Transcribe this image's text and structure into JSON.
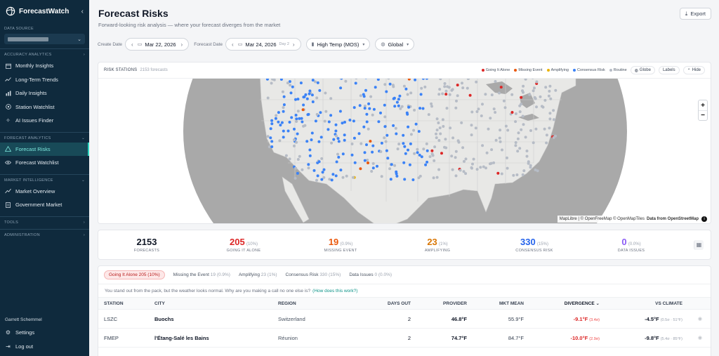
{
  "app": {
    "name": "ForecastWatch"
  },
  "sidebar": {
    "data_source_label": "DATA SOURCE",
    "sections": [
      {
        "label": "ACCURACY ANALYTICS",
        "items": [
          "Monthly Insights",
          "Long-Term Trends",
          "Daily Insights",
          "Station Watchlist",
          "AI Issues Finder"
        ]
      },
      {
        "label": "FORECAST ANALYTICS",
        "items": [
          "Forecast Risks",
          "Forecast Watchlist"
        ]
      },
      {
        "label": "MARKET INTELLIGENCE",
        "items": [
          "Market Overview",
          "Government Market"
        ]
      }
    ],
    "tools_label": "TOOLS",
    "admin_label": "ADMINISTRATION",
    "user_name": "Garrett Schemmel",
    "settings_label": "Settings",
    "logout_label": "Log out",
    "active_item": "Forecast Risks"
  },
  "header": {
    "title": "Forecast Risks",
    "subtitle": "Forward-looking risk analysis — where your forecast diverges from the market",
    "export_label": "Export"
  },
  "controls": {
    "create_date_label": "Create Date",
    "create_date": "Mar 22, 2026",
    "forecast_date_label": "Forecast Date",
    "forecast_date": "Mar 24, 2026",
    "forecast_day": "Day 2",
    "variable": "High Temp (MOS)",
    "region": "Global"
  },
  "map": {
    "title": "RISK STATIONS",
    "count": "2153 forecasts",
    "legend": [
      {
        "label": "Going It Alone",
        "color": "#dc2626"
      },
      {
        "label": "Missing Event",
        "color": "#ea580c"
      },
      {
        "label": "Amplifying",
        "color": "#eab308"
      },
      {
        "label": "Consensus Risk",
        "color": "#3b82f6"
      },
      {
        "label": "Routine",
        "color": "#b6bcc6"
      }
    ],
    "globe_label": "Globe",
    "labels_label": "Labels",
    "hide_label": "Hide",
    "zoom_in": "+",
    "zoom_out": "−",
    "attribution": "MapLibre | © OpenFreeMap © OpenMapTiles",
    "attribution_bold": "Data from OpenStreetMap"
  },
  "stats": [
    {
      "value": "2153",
      "pct": "",
      "label": "FORECASTS",
      "color": "#111827"
    },
    {
      "value": "205",
      "pct": "(10%)",
      "label": "GOING IT ALONE",
      "color": "#dc2626"
    },
    {
      "value": "19",
      "pct": "(0.9%)",
      "label": "MISSING EVENT",
      "color": "#ea580c"
    },
    {
      "value": "23",
      "pct": "(1%)",
      "label": "AMPLIFYING",
      "color": "#d97706"
    },
    {
      "value": "330",
      "pct": "(15%)",
      "label": "CONSENSUS RISK",
      "color": "#2563eb"
    },
    {
      "value": "0",
      "pct": "(0.0%)",
      "label": "DATA ISSUES",
      "color": "#8b5cf6"
    }
  ],
  "tabs": [
    {
      "label": "Going It Alone",
      "count": "205 (10%)"
    },
    {
      "label": "Missing the Event",
      "count": "19 (0.9%)"
    },
    {
      "label": "Amplifying",
      "count": "23 (1%)"
    },
    {
      "label": "Consensus Risk",
      "count": "330 (15%)"
    },
    {
      "label": "Data Issues",
      "count": "0 (0.0%)"
    }
  ],
  "note": {
    "text": "You stand out from the pack, but the weather looks normal. Why are you making a call no one else is?",
    "link": "(How does this work?)"
  },
  "table": {
    "headers": {
      "station": "STATION",
      "city": "CITY",
      "region": "REGION",
      "days": "DAYS OUT",
      "provider": "PROVIDER",
      "mkt": "MKT MEAN",
      "divergence": "DIVERGENCE ⌄",
      "climate": "VS CLIMATE"
    },
    "rows": [
      {
        "station": "LSZC",
        "city": "Buochs",
        "region": "Switzerland",
        "days": "2",
        "provider": "46.8°F",
        "mkt": "55.9°F",
        "div": "-9.1°F",
        "div_sub": "(3.4σ)",
        "clim": "-4.5°F",
        "clim_sub": "(0.5σ · 51°F)"
      },
      {
        "station": "FMEP",
        "city": "l'Étang-Salé les Bains",
        "region": "Réunion",
        "days": "2",
        "provider": "74.7°F",
        "mkt": "84.7°F",
        "div": "-10.0°F",
        "div_sub": "(2.9σ)",
        "clim": "-9.8°F",
        "clim_sub": "(5.4σ · 85°F)"
      }
    ]
  }
}
